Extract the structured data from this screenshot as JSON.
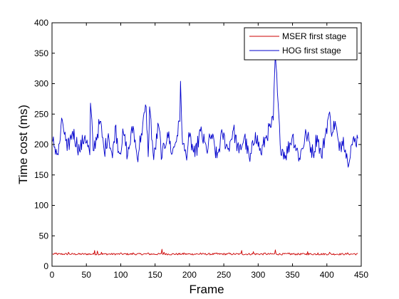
{
  "chart_data": {
    "type": "line",
    "title": "",
    "xlabel": "Frame",
    "ylabel": "Time cost (ms)",
    "xlim": [
      0,
      450
    ],
    "ylim": [
      0,
      400
    ],
    "x_ticks": [
      0,
      50,
      100,
      150,
      200,
      250,
      300,
      350,
      400,
      450
    ],
    "y_ticks": [
      0,
      50,
      100,
      150,
      200,
      250,
      300,
      350,
      400
    ],
    "grid": false,
    "legend_position": "top-right",
    "x_range": [
      1,
      445
    ],
    "series": [
      {
        "name": "MSER first stage",
        "color": "#cc0000",
        "baseline": 20,
        "jitter": 1.5,
        "spikes": [
          [
            6,
            22
          ],
          [
            24,
            23
          ],
          [
            62,
            26
          ],
          [
            66,
            25
          ],
          [
            72,
            23
          ],
          [
            100,
            22
          ],
          [
            118,
            22
          ],
          [
            140,
            22
          ],
          [
            160,
            28
          ],
          [
            163,
            23
          ],
          [
            192,
            22
          ],
          [
            216,
            22
          ],
          [
            240,
            22
          ],
          [
            258,
            22
          ],
          [
            276,
            26
          ],
          [
            293,
            24
          ],
          [
            310,
            22
          ],
          [
            325,
            27
          ],
          [
            345,
            22
          ],
          [
            372,
            24
          ],
          [
            387,
            22
          ],
          [
            404,
            23
          ],
          [
            430,
            22
          ],
          [
            440,
            21
          ]
        ]
      },
      {
        "name": "HOG first stage",
        "color": "#0000cc",
        "baseline": 205,
        "jitter": 14,
        "keypoints": [
          [
            1,
            205
          ],
          [
            9,
            183
          ],
          [
            15,
            240
          ],
          [
            22,
            190
          ],
          [
            30,
            222
          ],
          [
            40,
            190
          ],
          [
            48,
            215
          ],
          [
            55,
            183
          ],
          [
            56,
            268
          ],
          [
            60,
            190
          ],
          [
            70,
            238
          ],
          [
            76,
            188
          ],
          [
            82,
            218
          ],
          [
            88,
            178
          ],
          [
            92,
            230
          ],
          [
            98,
            185
          ],
          [
            104,
            218
          ],
          [
            110,
            182
          ],
          [
            118,
            230
          ],
          [
            124,
            178
          ],
          [
            130,
            218
          ],
          [
            137,
            262
          ],
          [
            140,
            180
          ],
          [
            142,
            262
          ],
          [
            148,
            175
          ],
          [
            155,
            232
          ],
          [
            160,
            178
          ],
          [
            168,
            220
          ],
          [
            175,
            185
          ],
          [
            182,
            215
          ],
          [
            186,
            238
          ],
          [
            187,
            304
          ],
          [
            190,
            200
          ],
          [
            195,
            182
          ],
          [
            200,
            212
          ],
          [
            208,
            180
          ],
          [
            216,
            222
          ],
          [
            225,
            190
          ],
          [
            232,
            216
          ],
          [
            240,
            178
          ],
          [
            248,
            218
          ],
          [
            256,
            192
          ],
          [
            264,
            225
          ],
          [
            272,
            186
          ],
          [
            280,
            213
          ],
          [
            288,
            172
          ],
          [
            296,
            220
          ],
          [
            304,
            185
          ],
          [
            312,
            215
          ],
          [
            318,
            228
          ],
          [
            322,
            240
          ],
          [
            325,
            350
          ],
          [
            328,
            285
          ],
          [
            332,
            200
          ],
          [
            340,
            182
          ],
          [
            350,
            215
          ],
          [
            360,
            178
          ],
          [
            370,
            218
          ],
          [
            380,
            185
          ],
          [
            386,
            215
          ],
          [
            392,
            180
          ],
          [
            398,
            218
          ],
          [
            403,
            250
          ],
          [
            408,
            220
          ],
          [
            412,
            238
          ],
          [
            418,
            190
          ],
          [
            424,
            212
          ],
          [
            430,
            172
          ],
          [
            436,
            200
          ],
          [
            445,
            210
          ]
        ]
      }
    ]
  }
}
